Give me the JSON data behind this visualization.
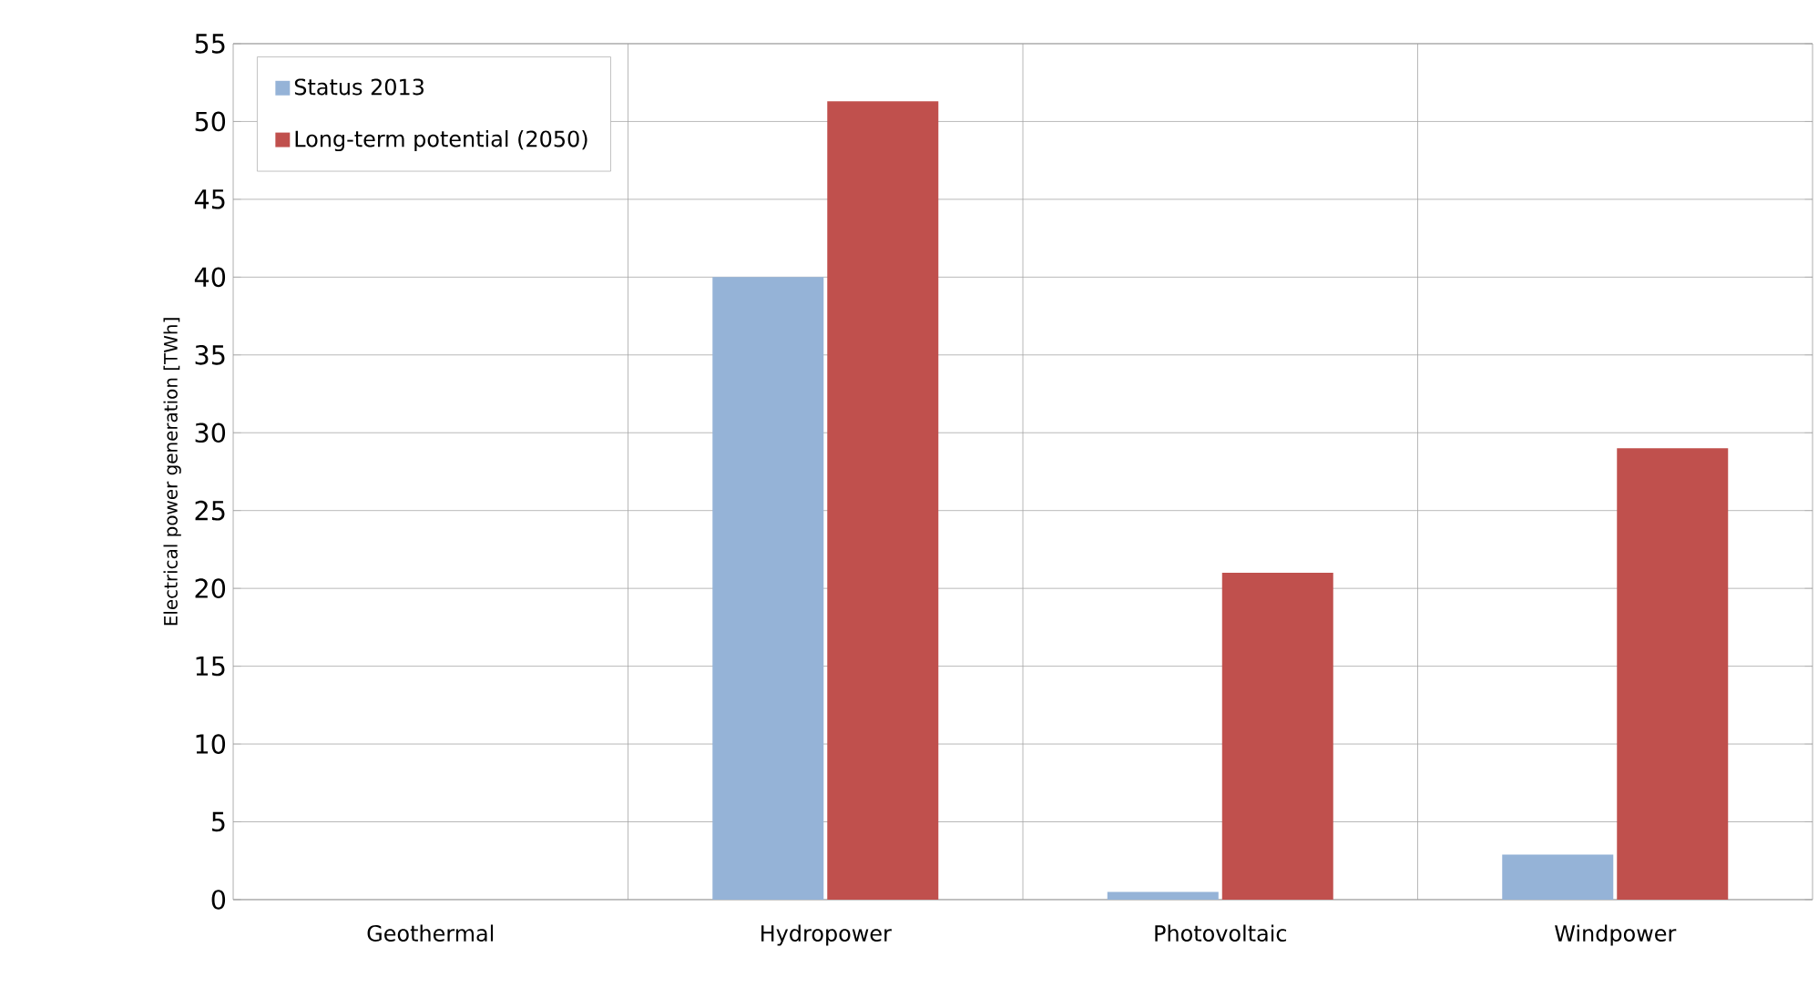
{
  "chart_data": {
    "type": "bar",
    "ylabel": "Electrical power generation  [TWh]",
    "categories": [
      "Geothermal",
      "Hydropower",
      "Photovoltaic",
      "Windpower"
    ],
    "series": [
      {
        "name": "Status 2013",
        "color": "#95b3d7",
        "values": [
          0,
          40,
          0.5,
          2.9
        ]
      },
      {
        "name": "Long-term potential (2050)",
        "color": "#c0504d",
        "values": [
          0,
          51.3,
          21,
          29
        ]
      }
    ],
    "ylim": [
      0,
      55
    ],
    "yticks": [
      0,
      5,
      10,
      15,
      20,
      25,
      30,
      35,
      40,
      45,
      50,
      55
    ],
    "grid": true,
    "legend": "top left"
  }
}
